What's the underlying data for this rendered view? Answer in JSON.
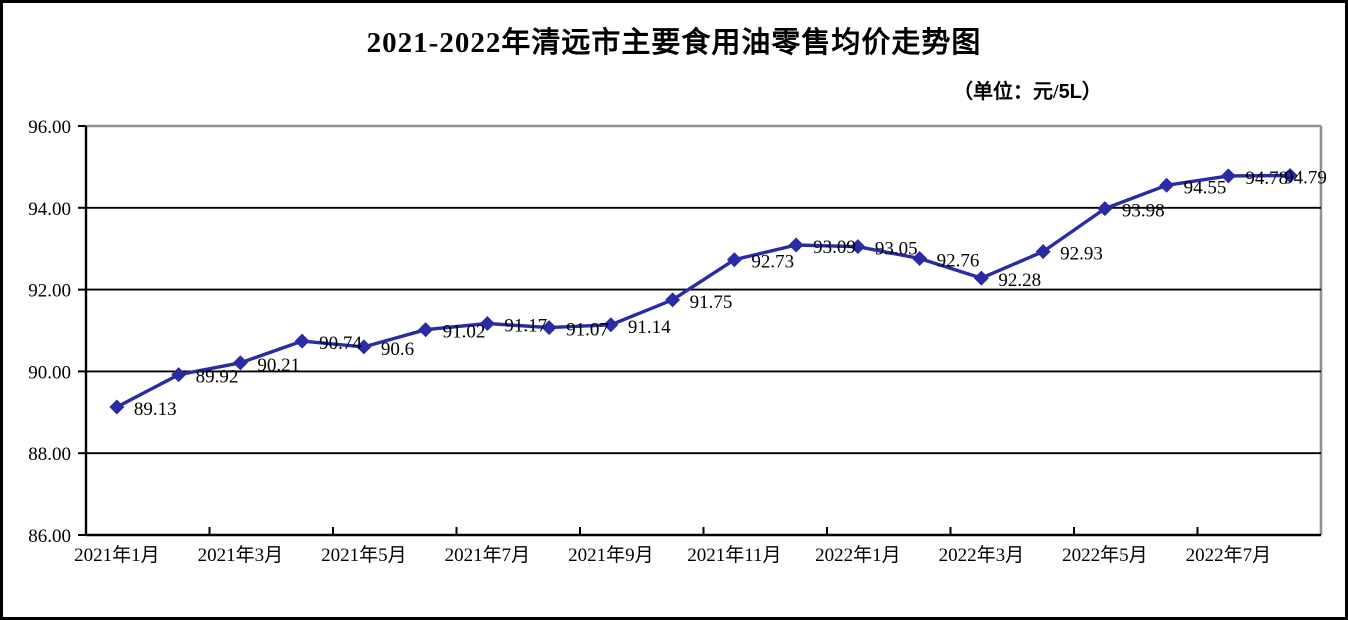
{
  "title": "2021-2022年清远市主要食用油零售均价走势图",
  "unit_label": {
    "full": "（单位：元/5L）",
    "prefix": "（单位：元/",
    "bold": "5L",
    "suffix": "）"
  },
  "chart_data": {
    "type": "line",
    "title": "2021-2022年清远市主要食用油零售均价走势图",
    "unit": "元/5L",
    "ylim": [
      86,
      96
    ],
    "y_tick_labels": [
      "96.00",
      "94.00",
      "92.00",
      "90.00",
      "88.00",
      "86.00"
    ],
    "y_tick_values": [
      96,
      94,
      92,
      90,
      88,
      86
    ],
    "x_tick_labels": [
      "2021年1月",
      "2021年3月",
      "2021年5月",
      "2021年7月",
      "2021年9月",
      "2021年11月",
      "2022年1月",
      "2022年3月",
      "2022年5月",
      "2022年7月"
    ],
    "values": [
      89.13,
      89.92,
      90.21,
      90.74,
      90.6,
      91.02,
      91.17,
      91.07,
      91.14,
      91.75,
      92.73,
      93.09,
      93.05,
      92.76,
      92.28,
      92.93,
      93.98,
      94.55,
      94.78,
      94.79
    ],
    "point_labels": [
      "89.13",
      "89.92",
      "90.21",
      "90.74",
      "90.6",
      "91.02",
      "91.17",
      "91.07",
      "91.14",
      "91.75",
      "92.73",
      "93.09",
      "93.05",
      "92.76",
      "92.28",
      "92.93",
      "93.98",
      "94.55",
      "94.78",
      "94.79"
    ],
    "line_color": "#2b2ba3",
    "plot_border_color": "#919191",
    "grid": true,
    "legend_position": "none",
    "marker": "diamond"
  }
}
